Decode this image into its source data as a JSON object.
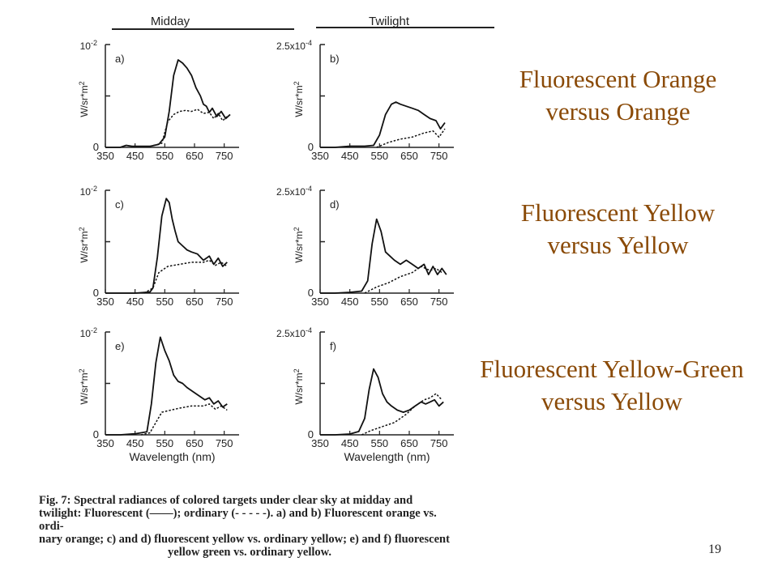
{
  "figure": {
    "column_headers": [
      "Midday",
      "Twilight"
    ],
    "caption_lines": [
      "Fig. 7: Spectral radiances of colored targets under clear sky at midday and",
      "twilight: Fluorescent (——); ordinary (- - - - -). a) and b) Fluorescent orange vs. ordi-",
      "nary orange; c) and d) fluorescent yellow vs. ordinary yellow; e) and f) fluorescent",
      "yellow green vs. ordinary yellow."
    ],
    "panels": [
      {
        "label": "a)",
        "y_top_label": "10",
        "y_top_exp": "-2",
        "y_zero": "0",
        "y_axis_label": "W/sr*m",
        "y_axis_exp": "2",
        "x_ticks": [
          "350",
          "450",
          "550",
          "650",
          "750"
        ],
        "x_axis_label": ""
      },
      {
        "label": "b)",
        "y_top_label": "2.5x10",
        "y_top_exp": "-4",
        "y_zero": "0",
        "y_axis_label": "W/sr*m",
        "y_axis_exp": "2",
        "x_ticks": [
          "350",
          "450",
          "550",
          "650",
          "750"
        ],
        "x_axis_label": ""
      },
      {
        "label": "c)",
        "y_top_label": "10",
        "y_top_exp": "-2",
        "y_zero": "0",
        "y_axis_label": "W/sr*m",
        "y_axis_exp": "2",
        "x_ticks": [
          "350",
          "450",
          "550",
          "650",
          "750"
        ],
        "x_axis_label": ""
      },
      {
        "label": "d)",
        "y_top_label": "2.5x10",
        "y_top_exp": "-4",
        "y_zero": "0",
        "y_axis_label": "W/sr*m",
        "y_axis_exp": "2",
        "x_ticks": [
          "350",
          "450",
          "550",
          "650",
          "750"
        ],
        "x_axis_label": ""
      },
      {
        "label": "e)",
        "y_top_label": "10",
        "y_top_exp": "-2",
        "y_zero": "0",
        "y_axis_label": "W/sr*m",
        "y_axis_exp": "2",
        "x_ticks": [
          "350",
          "450",
          "550",
          "650",
          "750"
        ],
        "x_axis_label": "Wavelength (nm)"
      },
      {
        "label": "f)",
        "y_top_label": "2.5x10",
        "y_top_exp": "-4",
        "y_zero": "0",
        "y_axis_label": "W/sr*m",
        "y_axis_exp": "2",
        "x_ticks": [
          "350",
          "450",
          "550",
          "650",
          "750"
        ],
        "x_axis_label": "Wavelength (nm)"
      }
    ]
  },
  "chart_data": [
    {
      "type": "line",
      "panel": "a)",
      "xlim": [
        350,
        800
      ],
      "ylim": [
        0,
        1
      ],
      "series": [
        {
          "style": "solid",
          "x": [
            350,
            400,
            420,
            440,
            470,
            500,
            530,
            550,
            565,
            580,
            595,
            610,
            625,
            640,
            655,
            670,
            680,
            690,
            700,
            710,
            725,
            740,
            755,
            770
          ],
          "y": [
            0,
            0,
            0.02,
            0.01,
            0.01,
            0.01,
            0.03,
            0.1,
            0.35,
            0.7,
            0.85,
            0.82,
            0.77,
            0.7,
            0.58,
            0.5,
            0.42,
            0.4,
            0.34,
            0.38,
            0.3,
            0.35,
            0.28,
            0.32
          ]
        },
        {
          "style": "dashed",
          "x": [
            500,
            540,
            560,
            580,
            600,
            620,
            640,
            660,
            680,
            700,
            715,
            730,
            745,
            760
          ],
          "y": [
            0.01,
            0.04,
            0.25,
            0.32,
            0.35,
            0.36,
            0.35,
            0.37,
            0.33,
            0.34,
            0.28,
            0.33,
            0.26,
            0.3
          ]
        }
      ]
    },
    {
      "type": "line",
      "panel": "b)",
      "xlim": [
        350,
        800
      ],
      "ylim": [
        0,
        0.00025
      ],
      "series": [
        {
          "style": "solid",
          "x": [
            350,
            400,
            450,
            500,
            530,
            550,
            570,
            590,
            605,
            620,
            640,
            660,
            680,
            700,
            720,
            740,
            755,
            770
          ],
          "y": [
            0,
            0,
            3e-06,
            3e-06,
            5e-06,
            3e-05,
            8e-05,
            0.000105,
            0.00011,
            0.000105,
            0.0001,
            9.5e-05,
            9e-05,
            8e-05,
            7e-05,
            6.5e-05,
            4.5e-05,
            6e-05
          ]
        },
        {
          "style": "dashed",
          "x": [
            540,
            580,
            620,
            660,
            700,
            730,
            750,
            770
          ],
          "y": [
            0,
            1.2e-05,
            2e-05,
            2.5e-05,
            3.5e-05,
            4e-05,
            2.5e-05,
            4.5e-05
          ]
        }
      ]
    },
    {
      "type": "line",
      "panel": "c)",
      "xlim": [
        350,
        800
      ],
      "ylim": [
        0,
        1
      ],
      "series": [
        {
          "style": "solid",
          "x": [
            350,
            400,
            450,
            500,
            510,
            525,
            540,
            555,
            565,
            575,
            585,
            595,
            610,
            625,
            640,
            660,
            680,
            700,
            715,
            730,
            745,
            760
          ],
          "y": [
            0,
            0,
            0,
            0.01,
            0.05,
            0.35,
            0.75,
            0.92,
            0.88,
            0.72,
            0.6,
            0.5,
            0.46,
            0.42,
            0.4,
            0.38,
            0.32,
            0.36,
            0.28,
            0.34,
            0.26,
            0.3
          ]
        },
        {
          "style": "dashed",
          "x": [
            480,
            510,
            530,
            560,
            600,
            640,
            680,
            700,
            720,
            740,
            760
          ],
          "y": [
            0,
            0.05,
            0.2,
            0.26,
            0.28,
            0.3,
            0.3,
            0.32,
            0.27,
            0.3,
            0.26
          ]
        }
      ]
    },
    {
      "type": "line",
      "panel": "d)",
      "xlim": [
        350,
        800
      ],
      "ylim": [
        0,
        0.00025
      ],
      "series": [
        {
          "style": "solid",
          "x": [
            350,
            400,
            450,
            490,
            510,
            525,
            540,
            555,
            570,
            585,
            600,
            620,
            640,
            660,
            680,
            700,
            715,
            730,
            745,
            760,
            775
          ],
          "y": [
            0,
            0,
            2e-06,
            5e-06,
            3e-05,
            0.00012,
            0.00018,
            0.00015,
            0.0001,
            9e-05,
            8e-05,
            7e-05,
            8e-05,
            7e-05,
            6e-05,
            7e-05,
            4.5e-05,
            6.5e-05,
            4.5e-05,
            6e-05,
            4.5e-05
          ]
        },
        {
          "style": "dashed",
          "x": [
            500,
            540,
            580,
            620,
            660,
            690,
            720,
            740,
            760
          ],
          "y": [
            0,
            1.5e-05,
            2.5e-05,
            4e-05,
            5e-05,
            6.5e-05,
            5.5e-05,
            6e-05,
            5e-05
          ]
        }
      ]
    },
    {
      "type": "line",
      "panel": "e)",
      "xlim": [
        350,
        800
      ],
      "ylim": [
        0,
        1
      ],
      "series": [
        {
          "style": "solid",
          "x": [
            350,
            400,
            450,
            490,
            505,
            520,
            535,
            550,
            565,
            580,
            595,
            610,
            625,
            645,
            665,
            685,
            700,
            715,
            730,
            745,
            760
          ],
          "y": [
            0,
            0,
            0.01,
            0.03,
            0.3,
            0.7,
            0.95,
            0.82,
            0.72,
            0.58,
            0.52,
            0.5,
            0.46,
            0.42,
            0.38,
            0.34,
            0.36,
            0.3,
            0.33,
            0.27,
            0.3
          ]
        },
        {
          "style": "dashed",
          "x": [
            470,
            500,
            520,
            540,
            570,
            600,
            640,
            680,
            700,
            720,
            740,
            760
          ],
          "y": [
            0,
            0.02,
            0.12,
            0.22,
            0.24,
            0.26,
            0.28,
            0.28,
            0.3,
            0.25,
            0.28,
            0.24
          ]
        }
      ]
    },
    {
      "type": "line",
      "panel": "f)",
      "xlim": [
        350,
        800
      ],
      "ylim": [
        0,
        0.00025
      ],
      "series": [
        {
          "style": "solid",
          "x": [
            350,
            400,
            450,
            480,
            500,
            515,
            530,
            545,
            560,
            575,
            590,
            610,
            630,
            650,
            670,
            690,
            705,
            720,
            735,
            750,
            765
          ],
          "y": [
            0,
            0,
            2e-06,
            8e-06,
            4e-05,
            0.00011,
            0.00016,
            0.00014,
            0.0001,
            8e-05,
            7e-05,
            6e-05,
            5.5e-05,
            6e-05,
            7e-05,
            8e-05,
            7.5e-05,
            8e-05,
            8.5e-05,
            7e-05,
            8e-05
          ]
        },
        {
          "style": "dashed",
          "x": [
            490,
            520,
            560,
            600,
            640,
            670,
            700,
            720,
            740,
            760
          ],
          "y": [
            0,
            1e-05,
            2e-05,
            3e-05,
            5e-05,
            7e-05,
            8.5e-05,
            9e-05,
            0.0001,
            8.5e-05
          ]
        }
      ]
    }
  ],
  "labels": {
    "block1_line1": "Fluorescent Orange",
    "block1_line2": "versus Orange",
    "block2_line1": "Fluorescent Yellow",
    "block2_line2": "versus Yellow",
    "block3_line1": "Fluorescent Yellow-Green",
    "block3_line2": "versus Yellow",
    "color": "#8a4a07"
  },
  "page_number": "19"
}
